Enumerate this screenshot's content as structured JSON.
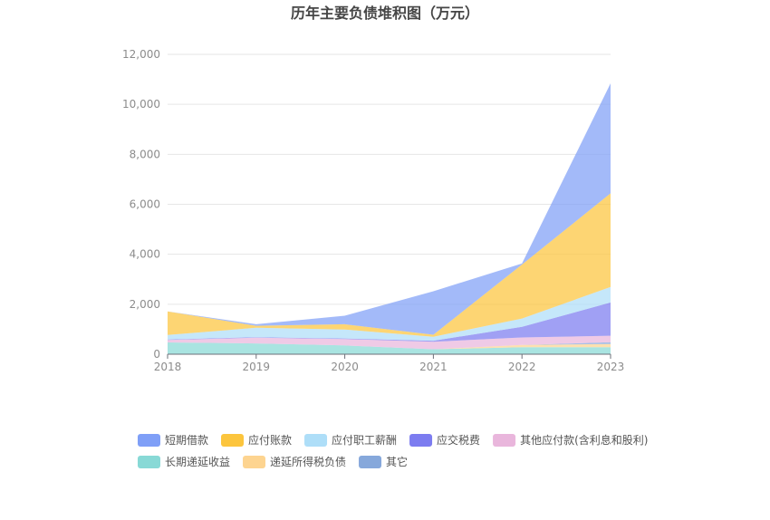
{
  "chart_data": {
    "type": "area",
    "stacked": true,
    "title": "历年主要负债堆积图（万元）",
    "xlabel": "",
    "ylabel": "",
    "ylim": [
      0,
      12000
    ],
    "yticks": [
      "0",
      "2,000",
      "4,000",
      "6,000",
      "8,000",
      "10,000",
      "12,000"
    ],
    "categories": [
      "2018",
      "2019",
      "2020",
      "2021",
      "2022",
      "2023"
    ],
    "grid": true,
    "legend_position": "bottom-left",
    "series": [
      {
        "name": "长期递延收益",
        "color": "#88d9d6",
        "values": [
          470,
          430,
          350,
          200,
          280,
          280
        ]
      },
      {
        "name": "递延所得税负债",
        "color": "#fdd490",
        "values": [
          0,
          0,
          0,
          0,
          90,
          130
        ]
      },
      {
        "name": "其它",
        "color": "#86a8db",
        "values": [
          0,
          0,
          0,
          0,
          0,
          70
        ]
      },
      {
        "name": "其他应付款(含利息和股利)",
        "color": "#e9b6dc",
        "values": [
          100,
          230,
          260,
          300,
          300,
          260
        ]
      },
      {
        "name": "应交税费",
        "color": "#7c7cf0",
        "values": [
          20,
          20,
          20,
          40,
          430,
          1330
        ]
      },
      {
        "name": "应付职工薪酬",
        "color": "#aedef8",
        "values": [
          180,
          380,
          360,
          160,
          330,
          620
        ]
      },
      {
        "name": "应付账款",
        "color": "#fcc53d",
        "values": [
          940,
          80,
          210,
          80,
          2160,
          3750
        ]
      },
      {
        "name": "短期借款",
        "color": "#7f9ff7",
        "values": [
          0,
          60,
          340,
          1740,
          40,
          4400
        ]
      }
    ],
    "legend_order": [
      "短期借款",
      "应付账款",
      "应付职工薪酬",
      "应交税费",
      "其他应付款(含利息和股利)",
      "长期递延收益",
      "递延所得税负债",
      "其它"
    ]
  }
}
